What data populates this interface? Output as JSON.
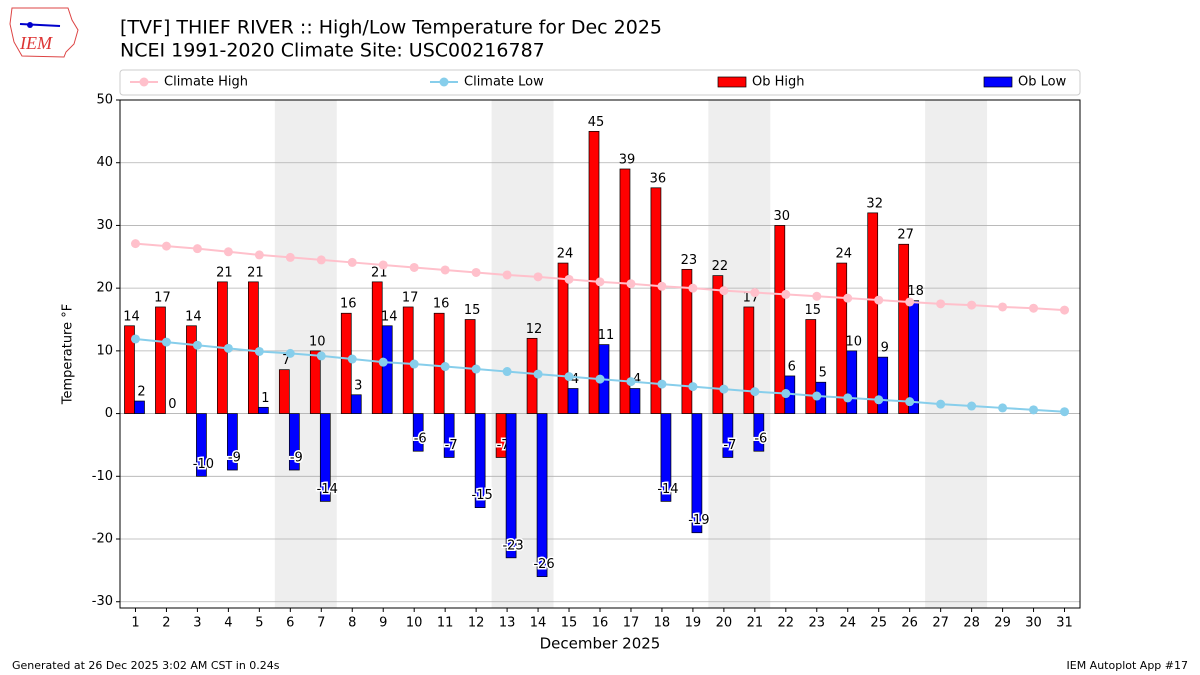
{
  "logo_text": "IEM",
  "footer_left": "Generated at 26 Dec 2025 3:02 AM CST in 0.24s",
  "footer_right": "IEM Autoplot App #17",
  "chart_data": {
    "type": "bar",
    "title": "[TVF] THIEF RIVER :: High/Low Temperature for Dec 2025",
    "subtitle": "NCEI 1991-2020 Climate Site: USC00216787",
    "xlabel": "December 2025",
    "ylabel": "Temperature °F",
    "x": [
      1,
      2,
      3,
      4,
      5,
      6,
      7,
      8,
      9,
      10,
      11,
      12,
      13,
      14,
      15,
      16,
      17,
      18,
      19,
      20,
      21,
      22,
      23,
      24,
      25,
      26,
      27,
      28,
      29,
      30,
      31
    ],
    "xlim": [
      0.5,
      31.5
    ],
    "xticks": [
      1,
      2,
      3,
      4,
      5,
      6,
      7,
      8,
      9,
      10,
      11,
      12,
      13,
      14,
      15,
      16,
      17,
      18,
      19,
      20,
      21,
      22,
      23,
      24,
      25,
      26,
      27,
      28,
      29,
      30,
      31
    ],
    "ylim": [
      -31,
      50
    ],
    "yticks": [
      -30,
      -20,
      -10,
      0,
      10,
      20,
      30,
      40,
      50
    ],
    "grid": true,
    "legend": "top",
    "weekend_shading": [
      [
        6,
        7
      ],
      [
        13,
        14
      ],
      [
        20,
        21
      ],
      [
        27,
        28
      ]
    ],
    "shading_color": "#eeeeee",
    "series": [
      {
        "name": "Climate High",
        "kind": "line",
        "color": "#ffc0cb",
        "values": [
          27.1,
          26.7,
          26.3,
          25.8,
          25.3,
          24.9,
          24.5,
          24.1,
          23.7,
          23.3,
          22.9,
          22.5,
          22.1,
          21.8,
          21.4,
          21.0,
          20.7,
          20.3,
          20.0,
          19.6,
          19.3,
          19.0,
          18.7,
          18.4,
          18.1,
          17.8,
          17.5,
          17.3,
          17.0,
          16.8,
          16.5
        ]
      },
      {
        "name": "Climate Low",
        "kind": "line",
        "color": "#87ceeb",
        "values": [
          11.9,
          11.4,
          10.9,
          10.4,
          9.9,
          9.6,
          9.2,
          8.7,
          8.2,
          7.9,
          7.5,
          7.1,
          6.7,
          6.3,
          5.9,
          5.5,
          5.1,
          4.7,
          4.3,
          3.9,
          3.5,
          3.2,
          2.8,
          2.5,
          2.2,
          1.9,
          1.5,
          1.2,
          0.9,
          0.6,
          0.3
        ]
      },
      {
        "name": "Ob High",
        "kind": "bar",
        "color": "#ff0000",
        "values": [
          14,
          17,
          14,
          21,
          21,
          7,
          10,
          16,
          21,
          17,
          16,
          15,
          -7,
          12,
          24,
          45,
          39,
          36,
          23,
          22,
          17,
          30,
          15,
          24,
          32,
          27,
          null,
          null,
          null,
          null,
          null
        ]
      },
      {
        "name": "Ob Low",
        "kind": "bar",
        "color": "#0000ff",
        "values": [
          2,
          0,
          -10,
          -9,
          1,
          -9,
          -14,
          3,
          14,
          -6,
          -7,
          -15,
          -23,
          -26,
          4,
          11,
          4,
          -14,
          -19,
          -7,
          -6,
          6,
          5,
          10,
          9,
          18,
          null,
          null,
          null,
          null,
          null
        ]
      }
    ]
  }
}
